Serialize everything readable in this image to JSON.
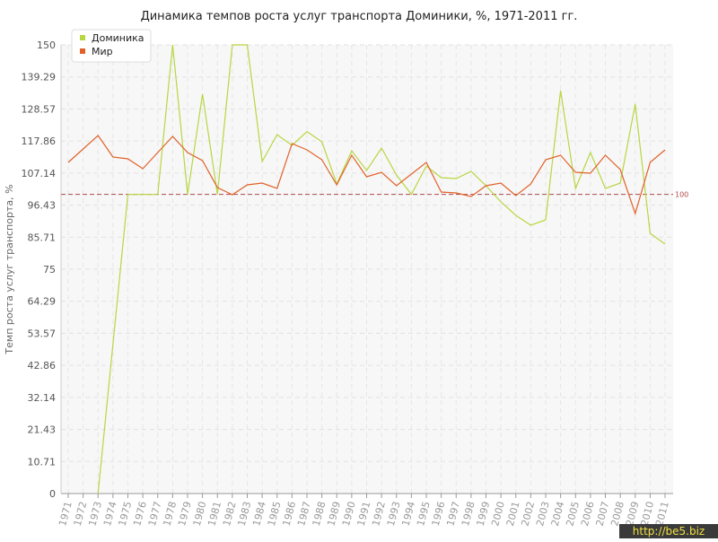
{
  "chart_data": {
    "type": "line",
    "title": "Динамика темпов роста услуг транспорта Доминики, %, 1971-2011 гг.",
    "y_label": "Темп роста услуг транспорта, %",
    "categories": [
      "1971",
      "1972",
      "1973",
      "1974",
      "1975",
      "1976",
      "1977",
      "1978",
      "1979",
      "1980",
      "1981",
      "1982",
      "1983",
      "1984",
      "1985",
      "1986",
      "1987",
      "1988",
      "1989",
      "1990",
      "1991",
      "1992",
      "1993",
      "1994",
      "1995",
      "1996",
      "1997",
      "1998",
      "1999",
      "2000",
      "2001",
      "2002",
      "2003",
      "2004",
      "2005",
      "2006",
      "2007",
      "2008",
      "2009",
      "2010",
      "2011"
    ],
    "series": [
      {
        "name": "Доминика",
        "color": "#b8d640",
        "values": [
          null,
          null,
          0,
          50,
          100,
          100,
          100,
          150,
          100,
          133.5,
          100,
          150,
          150,
          111,
          120,
          116.4,
          121,
          117.6,
          103.5,
          114.6,
          108,
          115.5,
          106.5,
          100,
          109.5,
          105.6,
          105.3,
          107.7,
          102.9,
          97.5,
          93,
          89.7,
          91.5,
          134.7,
          102,
          114,
          102,
          103.8,
          130.2,
          87,
          83.4
        ]
      },
      {
        "name": "Мир",
        "color": "#e0622a",
        "values": [
          110.7,
          115.2,
          119.7,
          112.5,
          111.9,
          108.6,
          114,
          119.4,
          114,
          111.3,
          102.3,
          99.9,
          103.2,
          103.8,
          102,
          117,
          114.9,
          111.6,
          103.2,
          113.1,
          105.9,
          107.4,
          102.9,
          106.8,
          110.7,
          100.8,
          100.5,
          99.3,
          102.9,
          103.8,
          99.6,
          103.5,
          111.6,
          113.1,
          107.4,
          107.1,
          113.1,
          108.3,
          93.6,
          110.7,
          114.9
        ]
      }
    ],
    "ylim": [
      0,
      150
    ],
    "yticks": [
      0,
      10.71,
      21.43,
      32.14,
      42.86,
      53.57,
      64.29,
      75,
      85.71,
      96.43,
      107.14,
      117.86,
      128.57,
      139.29,
      150
    ],
    "reference_line": 100,
    "reference_color": "#b04848",
    "grid": true,
    "legend": "top-left",
    "watermark": "http://be5.biz"
  }
}
